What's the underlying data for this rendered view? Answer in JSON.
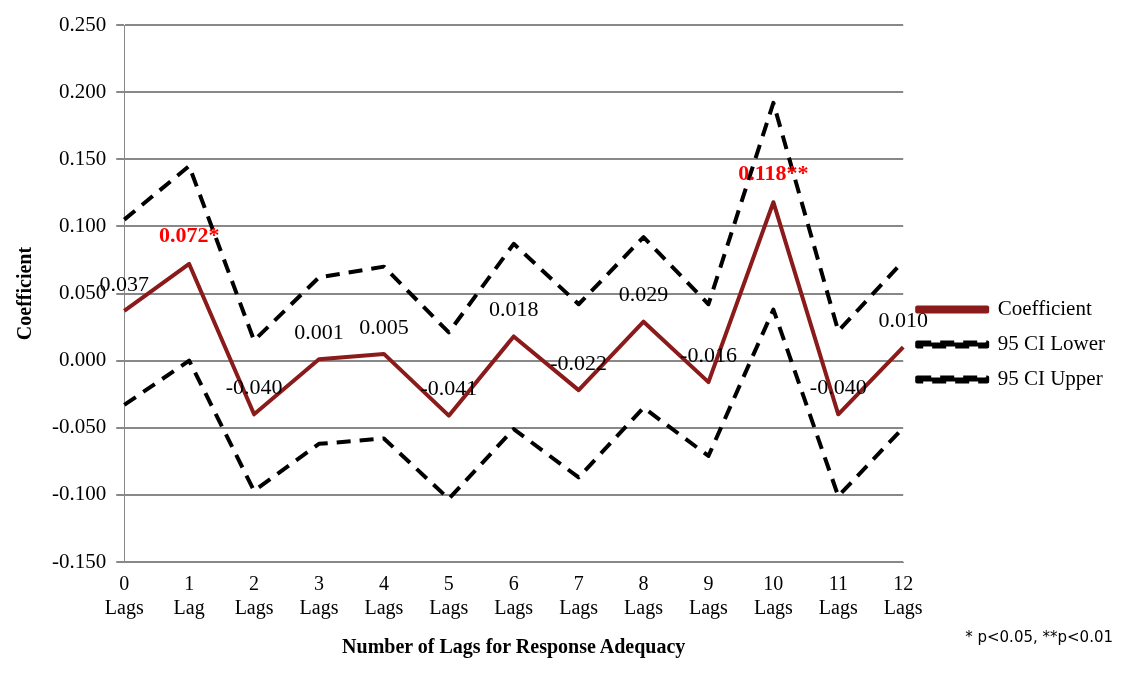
{
  "chart_data": {
    "type": "line",
    "xlabel": "Number of Lags for Response Adequacy",
    "ylabel": "Coefficient",
    "categories": [
      "0 Lags",
      "1 Lag",
      "2 Lags",
      "3 Lags",
      "4 Lags",
      "5 Lags",
      "6 Lags",
      "7 Lags",
      "8 Lags",
      "9 Lags",
      "10 Lags",
      "11 Lags",
      "12 Lags"
    ],
    "series": [
      {
        "name": "Coefficient",
        "color": "#8b1a1a",
        "line_style": "solid",
        "values": [
          0.037,
          0.072,
          -0.04,
          0.001,
          0.005,
          -0.041,
          0.018,
          -0.022,
          0.029,
          -0.016,
          0.118,
          -0.04,
          0.01
        ],
        "value_labels": [
          "0.037",
          null,
          "-0.040",
          "0.001",
          "0.005",
          "-0.041",
          "0.018",
          "-0.022",
          "0.029",
          "-0.016",
          null,
          "-0.040",
          "0.010"
        ]
      },
      {
        "name": "95 CI Lower",
        "color": "#000000",
        "line_style": "dashed",
        "values": [
          -0.033,
          0.0,
          -0.097,
          -0.062,
          -0.058,
          -0.103,
          -0.051,
          -0.087,
          -0.035,
          -0.071,
          0.038,
          -0.101,
          -0.05
        ]
      },
      {
        "name": "95 CI Upper",
        "color": "#000000",
        "line_style": "dashed",
        "values": [
          0.105,
          0.145,
          0.015,
          0.062,
          0.07,
          0.021,
          0.087,
          0.042,
          0.092,
          0.042,
          0.192,
          0.022,
          0.074
        ]
      }
    ],
    "ylim": [
      -0.15,
      0.25
    ],
    "yticks": [
      {
        "value": -0.15,
        "label": "-0.150"
      },
      {
        "value": -0.1,
        "label": "-0.100"
      },
      {
        "value": -0.05,
        "label": "-0.050"
      },
      {
        "value": 0,
        "label": "0.000"
      },
      {
        "value": 0.05,
        "label": "0.050"
      },
      {
        "value": 0.1,
        "label": "0.100"
      },
      {
        "value": 0.15,
        "label": "0.150"
      },
      {
        "value": 0.2,
        "label": "0.200"
      },
      {
        "value": 0.25,
        "label": "0.250"
      }
    ],
    "grid": "y",
    "legend": "right",
    "marker": "none",
    "annotations": [
      {
        "text": "0.072*",
        "x": "1 Lag",
        "y": 0.072
      },
      {
        "text": "0.118**",
        "x": "10 Lags",
        "y": 0.118
      },
      "* p<0.05, **p<0.01"
    ]
  }
}
